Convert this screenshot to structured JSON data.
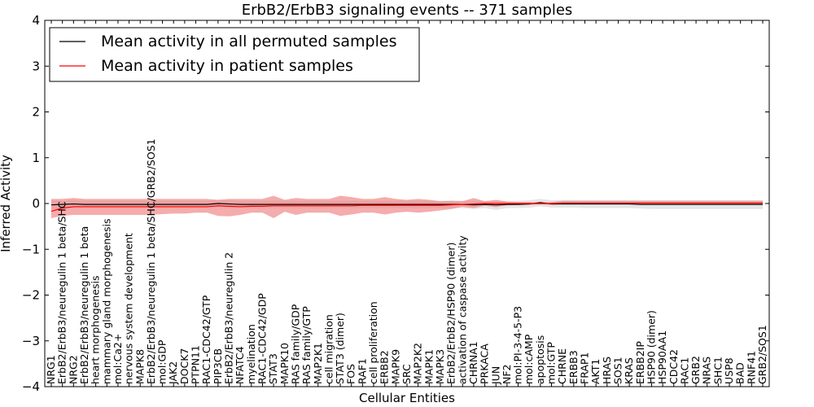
{
  "chart_data": {
    "type": "line",
    "title": "ErbB2/ErbB3 signaling events -- 371 samples",
    "xlabel": "Cellular Entities",
    "ylabel": "Inferred Activity",
    "ylim": [
      -4,
      4
    ],
    "yticks": [
      -4,
      -3,
      -2,
      -1,
      0,
      1,
      2,
      3,
      4
    ],
    "ytick_labels": [
      "−4",
      "−3",
      "−2",
      "−1",
      "0",
      "1",
      "2",
      "3",
      "4"
    ],
    "legend_position": "top-left",
    "categories": [
      "NRG1",
      "ErbB2/ErbB3/neuregulin 1 beta/SHC",
      "NRG2",
      "ErbB2/ErbB3/neuregulin 1 beta",
      "heart morphogenesis",
      "mammary gland morphogenesis",
      "mol:Ca2+",
      "nervous system development",
      "MAPK8",
      "ErbB2/ErbB3/neuregulin 1 beta/SHC/GRB2/SOS1",
      "mol:GDP",
      "JAK2",
      "DOCK7",
      "PTPN11",
      "RAC1-CDC42/GTP",
      "PIP3CB",
      "ErbB2/ErbB3/neuregulin 2",
      "NFATC4",
      "myelination",
      "RAC1-CDC42/GDP",
      "STAT3",
      "MAPK10",
      "RAS family/GDP",
      "RAS family/GTP",
      "MAP2K1",
      "cell migration",
      "STAT3 (dimer)",
      "FOS",
      "RAF1",
      "cell proliferation",
      "ERBB2",
      "MAPK9",
      "SRC",
      "MAP2K2",
      "MAPK1",
      "MAPK3",
      "ErbB2/ErbB2/HSP90 (dimer)",
      "activation of caspase activity",
      "CHRNA1",
      "PRKACA",
      "JUN",
      "NF2",
      "mol:PI-3-4-5-P3",
      "mol:cAMP",
      "apoptosis",
      "mol:GTP",
      "CHRNE",
      "ERBB3",
      "FRAP1",
      "AKT1",
      "HRAS",
      "SOS1",
      "KRAS",
      "ERBB2IP",
      "HSP90 (dimer)",
      "HSP90AA1",
      "CDC42",
      "RAC1",
      "GRB2",
      "NRAS",
      "SHC1",
      "USP8",
      "BAD",
      "RNF41",
      "GRB2/SOS1"
    ],
    "series": [
      {
        "name": "Mean activity in all permuted samples",
        "color": "#000000",
        "band_color": "#d3d3d3",
        "values": [
          -0.03,
          -0.02,
          -0.01,
          -0.02,
          -0.02,
          -0.02,
          -0.02,
          -0.02,
          -0.02,
          -0.02,
          -0.02,
          -0.02,
          -0.02,
          -0.02,
          -0.02,
          0.0,
          -0.01,
          -0.02,
          -0.02,
          -0.02,
          -0.02,
          -0.02,
          -0.02,
          -0.02,
          -0.02,
          -0.02,
          -0.02,
          -0.02,
          -0.02,
          -0.02,
          -0.02,
          -0.02,
          -0.02,
          -0.02,
          -0.02,
          -0.02,
          -0.02,
          -0.02,
          -0.03,
          -0.02,
          -0.03,
          -0.02,
          -0.02,
          -0.01,
          0.02,
          -0.01,
          -0.01,
          -0.01,
          -0.01,
          -0.01,
          -0.01,
          -0.01,
          -0.01,
          -0.02,
          -0.02,
          -0.02,
          -0.02,
          -0.02,
          -0.02,
          -0.02,
          -0.02,
          -0.02,
          -0.02,
          -0.02,
          -0.02
        ],
        "lower": [
          -0.13,
          -0.1,
          -0.1,
          -0.1,
          -0.1,
          -0.1,
          -0.1,
          -0.1,
          -0.1,
          -0.1,
          -0.1,
          -0.1,
          -0.1,
          -0.1,
          -0.1,
          -0.08,
          -0.09,
          -0.1,
          -0.1,
          -0.1,
          -0.1,
          -0.1,
          -0.1,
          -0.1,
          -0.1,
          -0.1,
          -0.1,
          -0.1,
          -0.1,
          -0.1,
          -0.1,
          -0.1,
          -0.1,
          -0.1,
          -0.1,
          -0.1,
          -0.1,
          -0.1,
          -0.12,
          -0.1,
          -0.14,
          -0.1,
          -0.1,
          -0.09,
          -0.06,
          -0.09,
          -0.09,
          -0.09,
          -0.1,
          -0.1,
          -0.1,
          -0.1,
          -0.1,
          -0.11,
          -0.12,
          -0.12,
          -0.12,
          -0.12,
          -0.12,
          -0.12,
          -0.12,
          -0.12,
          -0.12,
          -0.12,
          -0.12
        ],
        "upper": [
          0.07,
          0.06,
          0.08,
          0.06,
          0.06,
          0.06,
          0.06,
          0.06,
          0.06,
          0.06,
          0.06,
          0.06,
          0.06,
          0.06,
          0.06,
          0.08,
          0.07,
          0.06,
          0.06,
          0.06,
          0.06,
          0.06,
          0.06,
          0.06,
          0.06,
          0.06,
          0.06,
          0.06,
          0.06,
          0.06,
          0.06,
          0.06,
          0.06,
          0.06,
          0.06,
          0.06,
          0.06,
          0.06,
          0.06,
          0.06,
          0.06,
          0.06,
          0.06,
          0.07,
          0.1,
          0.07,
          0.07,
          0.07,
          0.07,
          0.07,
          0.07,
          0.07,
          0.07,
          0.07,
          0.07,
          0.07,
          0.07,
          0.07,
          0.07,
          0.07,
          0.07,
          0.07,
          0.07,
          0.07,
          0.07
        ]
      },
      {
        "name": "Mean activity in patient samples",
        "color": "#ff0000",
        "band_color": "#f08080",
        "values": [
          -0.17,
          -0.1,
          -0.07,
          -0.07,
          -0.07,
          -0.07,
          -0.07,
          -0.07,
          -0.07,
          -0.07,
          -0.07,
          -0.07,
          -0.07,
          -0.07,
          -0.07,
          -0.05,
          -0.06,
          -0.07,
          -0.06,
          -0.06,
          -0.05,
          -0.05,
          -0.05,
          -0.05,
          -0.05,
          -0.05,
          -0.05,
          -0.05,
          -0.04,
          -0.04,
          -0.04,
          -0.04,
          -0.04,
          -0.04,
          -0.04,
          -0.04,
          -0.03,
          -0.02,
          -0.01,
          0.0,
          0.0,
          0.0,
          0.0,
          0.0,
          0.0,
          0.0,
          0.01,
          0.01,
          0.01,
          0.01,
          0.01,
          0.01,
          0.01,
          0.01,
          0.01,
          0.01,
          0.01,
          0.01,
          0.01,
          0.01,
          0.01,
          0.01,
          0.01,
          0.01,
          0.01
        ],
        "lower": [
          -0.32,
          -0.27,
          -0.25,
          -0.25,
          -0.25,
          -0.25,
          -0.25,
          -0.25,
          -0.25,
          -0.25,
          -0.23,
          -0.22,
          -0.22,
          -0.2,
          -0.2,
          -0.27,
          -0.28,
          -0.25,
          -0.2,
          -0.2,
          -0.32,
          -0.18,
          -0.25,
          -0.2,
          -0.2,
          -0.2,
          -0.27,
          -0.24,
          -0.2,
          -0.2,
          -0.24,
          -0.2,
          -0.18,
          -0.2,
          -0.18,
          -0.15,
          -0.12,
          -0.07,
          -0.1,
          -0.05,
          -0.08,
          -0.04,
          -0.03,
          -0.03,
          -0.02,
          -0.03,
          -0.02,
          -0.02,
          -0.02,
          -0.02,
          -0.02,
          -0.02,
          -0.02,
          -0.02,
          -0.02,
          -0.02,
          -0.02,
          -0.02,
          -0.02,
          -0.02,
          -0.02,
          -0.02,
          -0.02,
          -0.02,
          -0.02
        ],
        "upper": [
          0.1,
          0.1,
          0.12,
          0.1,
          0.1,
          0.1,
          0.1,
          0.1,
          0.1,
          0.1,
          0.1,
          0.1,
          0.1,
          0.1,
          0.1,
          0.08,
          0.1,
          0.1,
          0.1,
          0.1,
          0.17,
          0.08,
          0.12,
          0.1,
          0.1,
          0.1,
          0.17,
          0.14,
          0.1,
          0.1,
          0.14,
          0.1,
          0.08,
          0.1,
          0.08,
          0.05,
          0.06,
          0.05,
          0.12,
          0.05,
          0.08,
          0.04,
          0.03,
          0.03,
          0.02,
          0.03,
          0.06,
          0.06,
          0.06,
          0.06,
          0.06,
          0.06,
          0.06,
          0.06,
          0.06,
          0.06,
          0.06,
          0.06,
          0.06,
          0.06,
          0.06,
          0.06,
          0.06,
          0.06,
          0.06
        ]
      }
    ]
  }
}
